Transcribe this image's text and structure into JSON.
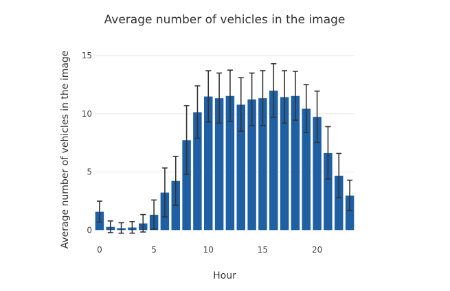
{
  "chart_data": {
    "type": "bar",
    "title": "Average number of vehicles in the image",
    "xlabel": "Hour",
    "ylabel": "Average number of vehicles in the image",
    "x": [
      0,
      1,
      2,
      3,
      4,
      5,
      6,
      7,
      8,
      9,
      10,
      11,
      12,
      13,
      14,
      15,
      16,
      17,
      18,
      19,
      20,
      21,
      22,
      23
    ],
    "values": [
      1.6,
      0.3,
      0.2,
      0.25,
      0.6,
      1.35,
      3.25,
      4.25,
      7.75,
      10.15,
      11.5,
      11.35,
      11.55,
      10.8,
      11.25,
      11.35,
      12.0,
      11.45,
      11.55,
      10.45,
      9.75,
      6.65,
      4.7,
      3.0
    ],
    "error": [
      0.9,
      0.5,
      0.45,
      0.5,
      0.75,
      1.25,
      2.1,
      2.1,
      2.95,
      2.25,
      2.2,
      2.15,
      2.2,
      2.3,
      2.25,
      2.35,
      2.3,
      2.25,
      2.1,
      2.05,
      2.2,
      2.25,
      1.9,
      1.3
    ],
    "xticks": [
      0,
      5,
      10,
      15,
      20
    ],
    "yticks": [
      0,
      5,
      10,
      15
    ],
    "xlim": [
      -0.5,
      23.5
    ],
    "ylim": [
      -0.5,
      16
    ],
    "grid": true,
    "bar_color": "#1f5fa3",
    "error_color": "#333333"
  }
}
